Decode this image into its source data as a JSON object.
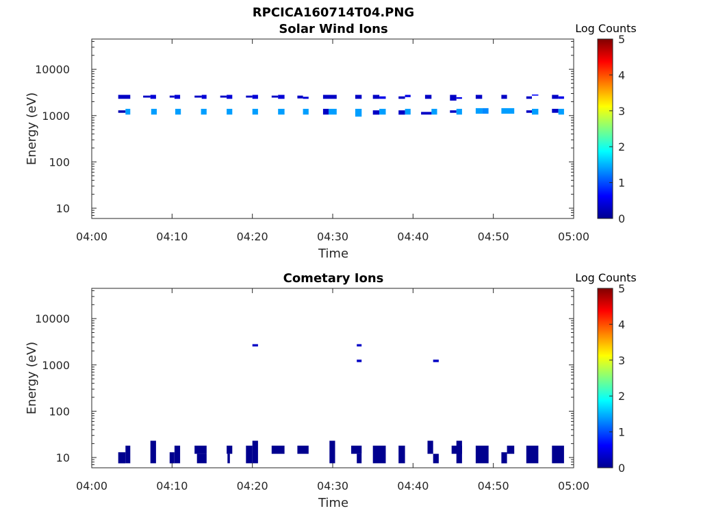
{
  "figure": {
    "title": "RPCICA160714T04.PNG"
  },
  "colors": {
    "colormap": [
      "#00008f",
      "#0000ff",
      "#0080ff",
      "#00ffff",
      "#80ff80",
      "#ffff00",
      "#ff8000",
      "#ff0000",
      "#800000"
    ],
    "axis": "#262626",
    "background": "#ffffff"
  },
  "chart_data": [
    {
      "type": "heatmap",
      "title": "Solar Wind Ions",
      "xlabel": "Time",
      "ylabel": "Energy (eV)",
      "x_ticks": [
        "04:00",
        "04:10",
        "04:20",
        "04:30",
        "04:40",
        "04:50",
        "05:00"
      ],
      "xlim_minutes": [
        0,
        60
      ],
      "ylim": [
        6,
        45000
      ],
      "yscale": "log",
      "y_ticks": [
        10,
        100,
        1000,
        10000
      ],
      "y_tick_labels": [
        "10",
        "100",
        "1000",
        "10000"
      ],
      "colorbar": {
        "label": "Log Counts",
        "range": [
          0,
          5
        ],
        "ticks": [
          "0",
          "1",
          "2",
          "3",
          "4",
          "5"
        ]
      },
      "cells": [
        [
          3.3,
          4.8,
          2300,
          2800,
          0.3
        ],
        [
          3.3,
          4.2,
          1150,
          1300,
          0.2
        ],
        [
          4.2,
          4.8,
          1050,
          1400,
          1.4
        ],
        [
          6.4,
          7.3,
          2450,
          2700,
          0.3
        ],
        [
          7.3,
          8.0,
          2300,
          2800,
          0.4
        ],
        [
          7.4,
          8.1,
          1050,
          1400,
          1.4
        ],
        [
          9.7,
          10.3,
          2450,
          2700,
          0.3
        ],
        [
          10.3,
          11.0,
          2300,
          2800,
          0.4
        ],
        [
          10.4,
          11.1,
          1050,
          1400,
          1.4
        ],
        [
          12.8,
          13.7,
          2450,
          2700,
          0.3
        ],
        [
          13.7,
          14.3,
          2300,
          2800,
          0.4
        ],
        [
          13.6,
          14.3,
          1050,
          1400,
          1.4
        ],
        [
          16.0,
          16.8,
          2450,
          2700,
          0.3
        ],
        [
          16.8,
          17.5,
          2300,
          2800,
          0.4
        ],
        [
          16.8,
          17.5,
          1050,
          1400,
          1.4
        ],
        [
          19.2,
          20.0,
          2450,
          2700,
          0.3
        ],
        [
          20.0,
          20.7,
          2300,
          2800,
          0.4
        ],
        [
          20.0,
          20.7,
          1050,
          1400,
          1.4
        ],
        [
          22.4,
          23.2,
          2450,
          2700,
          0.3
        ],
        [
          23.2,
          24.0,
          2300,
          2800,
          0.4
        ],
        [
          23.2,
          24.0,
          1050,
          1400,
          1.4
        ],
        [
          25.6,
          26.3,
          2350,
          2700,
          0.3
        ],
        [
          26.3,
          27.0,
          2300,
          2550,
          0.4
        ],
        [
          26.3,
          27.0,
          1050,
          1400,
          1.4
        ],
        [
          28.8,
          30.5,
          2300,
          2800,
          0.3
        ],
        [
          28.8,
          29.5,
          1050,
          1400,
          0.3
        ],
        [
          29.5,
          30.5,
          1050,
          1400,
          1.4
        ],
        [
          32.8,
          33.6,
          2300,
          2800,
          0.3
        ],
        [
          32.8,
          33.6,
          950,
          1400,
          1.4
        ],
        [
          35.0,
          35.8,
          2300,
          2800,
          0.3
        ],
        [
          35.8,
          36.6,
          2300,
          2600,
          0.5
        ],
        [
          35.0,
          35.8,
          1050,
          1300,
          0.3
        ],
        [
          35.8,
          36.6,
          1050,
          1400,
          1.4
        ],
        [
          38.2,
          39.0,
          2300,
          2600,
          0.3
        ],
        [
          39.0,
          39.7,
          2500,
          2800,
          0.5
        ],
        [
          38.2,
          39.0,
          1050,
          1300,
          0.3
        ],
        [
          39.0,
          39.7,
          1050,
          1400,
          1.4
        ],
        [
          41.5,
          42.3,
          2300,
          2800,
          0.3
        ],
        [
          41.0,
          42.3,
          1050,
          1200,
          0.3
        ],
        [
          42.3,
          43.0,
          1050,
          1400,
          1.4
        ],
        [
          44.6,
          45.4,
          2100,
          2800,
          0.3
        ],
        [
          45.4,
          46.1,
          2300,
          2500,
          0.5
        ],
        [
          44.6,
          45.4,
          1150,
          1300,
          0.3
        ],
        [
          45.4,
          46.1,
          1050,
          1400,
          1.4
        ],
        [
          47.8,
          48.6,
          2300,
          2800,
          0.3
        ],
        [
          47.8,
          48.6,
          1100,
          1450,
          1.4
        ],
        [
          48.6,
          49.4,
          1100,
          1450,
          1.3
        ],
        [
          51.0,
          51.7,
          2300,
          2800,
          0.3
        ],
        [
          51.0,
          52.6,
          1100,
          1450,
          1.4
        ],
        [
          54.1,
          54.8,
          2300,
          2600,
          0.3
        ],
        [
          54.8,
          55.6,
          2700,
          2850,
          0.6
        ],
        [
          54.1,
          54.8,
          1150,
          1300,
          0.3
        ],
        [
          54.8,
          55.6,
          1050,
          1400,
          1.4
        ],
        [
          57.3,
          58.1,
          2300,
          2800,
          0.3
        ],
        [
          58.1,
          58.8,
          2300,
          2600,
          0.5
        ],
        [
          57.3,
          58.1,
          1150,
          1400,
          0.3
        ],
        [
          58.1,
          58.8,
          1050,
          1400,
          1.4
        ]
      ]
    },
    {
      "type": "heatmap",
      "title": "Cometary Ions",
      "xlabel": "Time",
      "ylabel": "Energy (eV)",
      "x_ticks": [
        "04:00",
        "04:10",
        "04:20",
        "04:30",
        "04:40",
        "04:50",
        "05:00"
      ],
      "xlim_minutes": [
        0,
        60
      ],
      "ylim": [
        6,
        45000
      ],
      "yscale": "log",
      "y_ticks": [
        10,
        100,
        1000,
        10000
      ],
      "y_tick_labels": [
        "10",
        "100",
        "1000",
        "10000"
      ],
      "colorbar": {
        "label": "Log Counts",
        "range": [
          0,
          5
        ],
        "ticks": [
          "0",
          "1",
          "2",
          "3",
          "4",
          "5"
        ]
      },
      "cells": [
        [
          3.3,
          4.2,
          7.5,
          13,
          0
        ],
        [
          4.2,
          4.8,
          7.5,
          18,
          0
        ],
        [
          7.3,
          8.0,
          7.5,
          23,
          0
        ],
        [
          9.7,
          10.3,
          7.5,
          13,
          0
        ],
        [
          10.3,
          11.0,
          7.5,
          18,
          0
        ],
        [
          12.8,
          14.3,
          12,
          18,
          0
        ],
        [
          13.1,
          14.3,
          7.5,
          12,
          0
        ],
        [
          16.8,
          17.5,
          12,
          18,
          0
        ],
        [
          16.9,
          17.2,
          7.5,
          12,
          0
        ],
        [
          19.2,
          20.0,
          7.5,
          18,
          0
        ],
        [
          20.0,
          20.7,
          7.5,
          23,
          0
        ],
        [
          20.0,
          20.7,
          2500,
          2800,
          0.3
        ],
        [
          22.4,
          24.0,
          12,
          18,
          0
        ],
        [
          25.6,
          27.0,
          12,
          18,
          0
        ],
        [
          29.6,
          30.3,
          7.5,
          23,
          0
        ],
        [
          32.3,
          33.6,
          12,
          18,
          0
        ],
        [
          33.0,
          33.6,
          7.5,
          12,
          0
        ],
        [
          33.0,
          33.6,
          2500,
          2800,
          0.3
        ],
        [
          33.0,
          33.6,
          1150,
          1300,
          0.3
        ],
        [
          35.0,
          36.6,
          7.5,
          18,
          0
        ],
        [
          38.2,
          39.0,
          7.5,
          18,
          0
        ],
        [
          41.8,
          42.5,
          12,
          23,
          0
        ],
        [
          42.5,
          43.2,
          7.5,
          12,
          0
        ],
        [
          42.5,
          43.2,
          1150,
          1300,
          0.3
        ],
        [
          44.8,
          46.1,
          12,
          18,
          0
        ],
        [
          45.4,
          46.1,
          7.5,
          23,
          0
        ],
        [
          47.8,
          49.4,
          7.5,
          18,
          0
        ],
        [
          51.0,
          51.7,
          7.5,
          13,
          0
        ],
        [
          51.7,
          52.6,
          12,
          18,
          0
        ],
        [
          54.1,
          55.6,
          7.5,
          18,
          0
        ],
        [
          57.3,
          58.8,
          7.5,
          18,
          0
        ]
      ]
    }
  ]
}
